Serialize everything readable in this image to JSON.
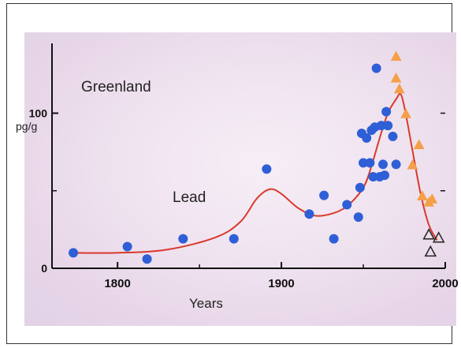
{
  "chart_data": {
    "type": "scatter",
    "title": "",
    "xlabel": "Years",
    "ylabel": "",
    "xlim": [
      1760,
      2000
    ],
    "ylim": [
      0,
      145
    ],
    "x_ticks": [
      1800,
      1900,
      2000
    ],
    "x_tick_labels": [
      "1800",
      "1900",
      "2000"
    ],
    "y_ticks": [
      0,
      100
    ],
    "y_tick_labels": [
      "0",
      "100"
    ],
    "y_unit_label": "pg/g",
    "annotations": {
      "region": "Greenland",
      "element": "Lead"
    },
    "grid": false,
    "legend": "none",
    "series": [
      {
        "type": "scatter",
        "marker": "circle-filled",
        "color": "#2f5fd6",
        "points": [
          [
            1773,
            10
          ],
          [
            1806,
            14
          ],
          [
            1818,
            6
          ],
          [
            1840,
            19
          ],
          [
            1871,
            19
          ],
          [
            1891,
            64
          ],
          [
            1917,
            35
          ],
          [
            1926,
            47
          ],
          [
            1932,
            19
          ],
          [
            1940,
            41
          ],
          [
            1947,
            33
          ],
          [
            1948,
            52
          ],
          [
            1949,
            87
          ],
          [
            1950,
            68
          ],
          [
            1952,
            84
          ],
          [
            1954,
            68
          ],
          [
            1955,
            89
          ],
          [
            1956,
            59
          ],
          [
            1957,
            91
          ],
          [
            1958,
            129
          ],
          [
            1960,
            59
          ],
          [
            1961,
            92
          ],
          [
            1962,
            67
          ],
          [
            1963,
            60
          ],
          [
            1964,
            101
          ],
          [
            1965,
            92
          ],
          [
            1968,
            85
          ],
          [
            1970,
            67
          ]
        ]
      },
      {
        "type": "scatter",
        "marker": "triangle-filled",
        "color": "#f4a04a",
        "points": [
          [
            1970,
            137
          ],
          [
            1970,
            123
          ],
          [
            1972,
            116
          ],
          [
            1976,
            100
          ],
          [
            1980,
            67
          ],
          [
            1984,
            80
          ],
          [
            1986,
            47
          ],
          [
            1990,
            43
          ],
          [
            1992,
            45
          ]
        ]
      },
      {
        "type": "scatter",
        "marker": "triangle-open",
        "color": "#222222",
        "points": [
          [
            1990,
            22
          ],
          [
            1996,
            20
          ],
          [
            1991,
            11
          ]
        ]
      },
      {
        "type": "line",
        "color": "#d83a2c",
        "points": [
          [
            1773,
            10
          ],
          [
            1800,
            10
          ],
          [
            1830,
            12
          ],
          [
            1860,
            20
          ],
          [
            1875,
            30
          ],
          [
            1885,
            45
          ],
          [
            1893,
            51
          ],
          [
            1900,
            48
          ],
          [
            1910,
            39
          ],
          [
            1920,
            34
          ],
          [
            1930,
            35
          ],
          [
            1940,
            40
          ],
          [
            1950,
            52
          ],
          [
            1955,
            66
          ],
          [
            1960,
            84
          ],
          [
            1965,
            100
          ],
          [
            1970,
            109
          ],
          [
            1973,
            112
          ],
          [
            1976,
            99
          ],
          [
            1980,
            76
          ],
          [
            1985,
            48
          ],
          [
            1990,
            28
          ],
          [
            1995,
            18
          ]
        ]
      }
    ]
  }
}
